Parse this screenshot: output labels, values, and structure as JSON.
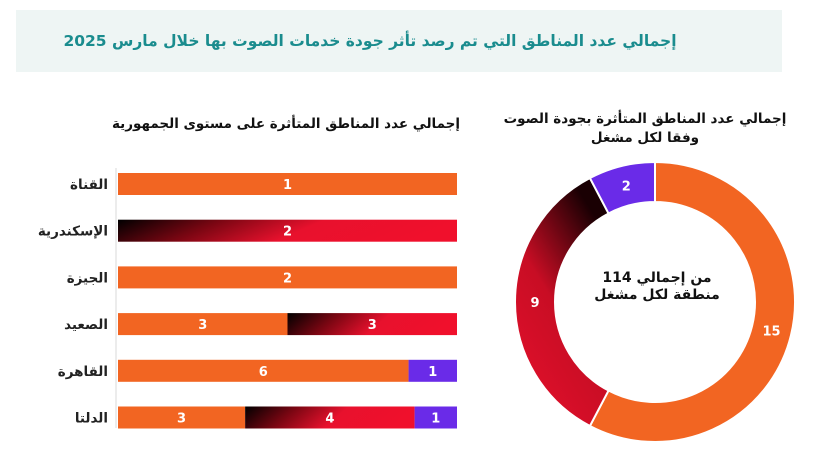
{
  "header": {
    "title": "إجمالي عدد المناطق التي تم رصد تأثر جودة خدمات الصوت بها خلال مارس  2025"
  },
  "colors": {
    "orange": "#f26522",
    "red_gradient": "#e8112d",
    "black": "#000000",
    "purple": "#6a2be8",
    "teal": "#1a8c8e"
  },
  "chart_data": [
    {
      "type": "bar",
      "orientation": "horizontal-stacked",
      "title": "إجمالي عدد المناطق المتأثرة على مستوى الجمهورية",
      "categories": [
        "القناة",
        "الإسكندرية",
        "الجيزة",
        "الصعيد",
        "القاهرة",
        "الدلتا"
      ],
      "series": [
        {
          "values": [
            1,
            0,
            2,
            3,
            6,
            3
          ],
          "color": "orange"
        },
        {
          "values": [
            0,
            2,
            0,
            3,
            0,
            4
          ],
          "color": "red-gradient"
        },
        {
          "values": [
            0,
            0,
            0,
            0,
            1,
            1
          ],
          "color": "purple"
        }
      ],
      "normalized": true,
      "grid": false
    },
    {
      "type": "pie",
      "variant": "donut",
      "title": "إجمالي عدد المناطق المتأثرة بجودة الصوت وفقا لكل مشغل",
      "center_label": "من إجمالي 114 منطقة لكل مشغل",
      "slices": [
        {
          "value": 15,
          "color": "orange"
        },
        {
          "value": 9,
          "color": "red-gradient"
        },
        {
          "value": 2,
          "color": "purple"
        }
      ]
    }
  ]
}
